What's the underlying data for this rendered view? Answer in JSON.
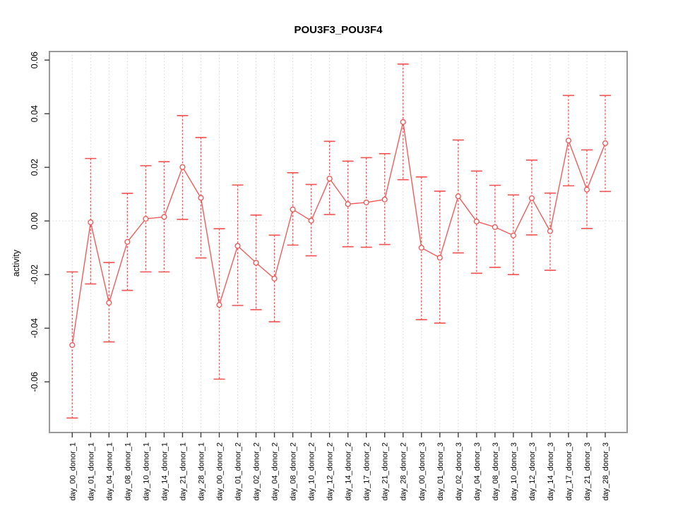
{
  "page": {
    "background": "#ffffff"
  },
  "chart_data": {
    "type": "line",
    "title": "POU3F3_POU3F4",
    "xlabel": "",
    "ylabel": "activity",
    "ylim": [
      -0.0789,
      0.0632
    ],
    "ytick_values": [
      0.06,
      0.04,
      0.02,
      0.0,
      -0.02,
      -0.04,
      -0.06
    ],
    "ytick_labels": [
      "0.06",
      "0.04",
      "0.02",
      "0.00",
      "-0.02",
      "-0.04",
      "-0.06"
    ],
    "grid": {
      "vertical_at_each_category": true,
      "horizontal_zero_line": true,
      "style": "dotted"
    },
    "legend": "none",
    "marker": "open-circle",
    "categories": [
      "day_00_donor_1",
      "day_01_donor_1",
      "day_04_donor_1",
      "day_08_donor_1",
      "day_10_donor_1",
      "day_14_donor_1",
      "day_21_donor_1",
      "day_28_donor_1",
      "day_00_donor_2",
      "day_01_donor_2",
      "day_02_donor_2",
      "day_04_donor_2",
      "day_08_donor_2",
      "day_10_donor_2",
      "day_12_donor_2",
      "day_14_donor_2",
      "day_17_donor_2",
      "day_21_donor_2",
      "day_28_donor_2",
      "day_00_donor_3",
      "day_01_donor_3",
      "day_02_donor_3",
      "day_04_donor_3",
      "day_08_donor_3",
      "day_10_donor_3",
      "day_12_donor_3",
      "day_14_donor_3",
      "day_17_donor_3",
      "day_21_donor_3",
      "day_28_donor_3"
    ],
    "series": [
      {
        "name": "POU3F3_POU3F4 activity",
        "values": [
          -0.0463,
          -0.0005,
          -0.0305,
          -0.0078,
          0.0008,
          0.0015,
          0.0201,
          0.0086,
          -0.0313,
          -0.0093,
          -0.0156,
          -0.0215,
          0.0043,
          0.0001,
          0.0158,
          0.0063,
          0.0069,
          0.008,
          0.0369,
          -0.01,
          -0.0137,
          0.0092,
          -0.0002,
          -0.0023,
          -0.0054,
          0.0085,
          -0.0038,
          0.03,
          0.0117,
          0.029
        ],
        "err_hi": [
          -0.019,
          0.0233,
          -0.0155,
          0.0103,
          0.0206,
          0.0221,
          0.0393,
          0.0311,
          -0.0029,
          0.0134,
          0.0022,
          -0.0053,
          0.018,
          0.0136,
          0.0297,
          0.0223,
          0.0236,
          0.0251,
          0.0585,
          0.0164,
          0.0111,
          0.0302,
          0.0186,
          0.0133,
          0.0097,
          0.0227,
          0.0104,
          0.0468,
          0.0265,
          0.0468
        ],
        "err_lo": [
          -0.0735,
          -0.0235,
          -0.0451,
          -0.0259,
          -0.019,
          -0.019,
          0.0006,
          -0.0138,
          -0.059,
          -0.0315,
          -0.0331,
          -0.0376,
          -0.009,
          -0.013,
          0.0024,
          -0.0096,
          -0.0098,
          -0.0088,
          0.0154,
          -0.0368,
          -0.0381,
          -0.0119,
          -0.0195,
          -0.0173,
          -0.02,
          -0.0052,
          -0.0184,
          0.0131,
          -0.0028,
          0.011
        ]
      }
    ],
    "colors": {
      "series": "#f35151",
      "grid": "#d6d6d6",
      "zero_line": "#d6d6d6",
      "box": "#999999",
      "tick": "#3d3d3d",
      "text": "#000000"
    }
  }
}
